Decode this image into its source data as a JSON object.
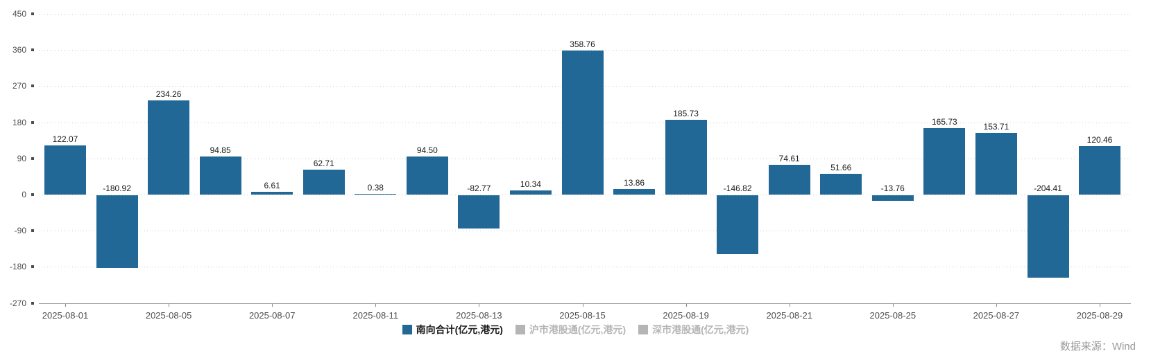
{
  "chart_data": {
    "type": "bar",
    "title": "",
    "grid": "dotted-horizontal",
    "legend_position": "bottom",
    "ylim": [
      -270,
      450
    ],
    "y_ticks": [
      450,
      360,
      270,
      180,
      90,
      0,
      -90,
      -180,
      -270
    ],
    "x_tick_labels": [
      "2025-08-01",
      "2025-08-05",
      "2025-08-07",
      "2025-08-11",
      "2025-08-13",
      "2025-08-15",
      "2025-08-19",
      "2025-08-21",
      "2025-08-25",
      "2025-08-27",
      "2025-08-29"
    ],
    "x_label_every_n_bars": 2,
    "value_label_decimals": 2,
    "series": [
      {
        "name": "南向合计(亿元,港元)",
        "color": "#226896",
        "values": [
          122.07,
          -180.92,
          234.26,
          94.85,
          6.61,
          62.71,
          0.38,
          94.5,
          -82.77,
          10.34,
          358.76,
          13.86,
          185.73,
          -146.82,
          74.61,
          51.66,
          -13.76,
          165.73,
          153.71,
          -204.41,
          120.46
        ]
      }
    ]
  },
  "legend": {
    "items": [
      {
        "label": "南向合计(亿元,港元)",
        "marker_color": "#226896",
        "text_color": "#1a1a1a",
        "active": true
      },
      {
        "label": "沪市港股通(亿元,港元)",
        "marker_color": "#b5b5b5",
        "text_color": "#b5b5b5",
        "active": false
      },
      {
        "label": "深市港股通(亿元,港元)",
        "marker_color": "#b5b5b5",
        "text_color": "#b5b5b5",
        "active": false
      }
    ]
  },
  "footer": {
    "source": "数据来源：Wind"
  },
  "colors": {
    "grid": "#c9c9c9",
    "axis": "#999999",
    "tick_mark": "#8c8c8c",
    "axis_label": "#4d4d4d",
    "value_label": "#1a1a1a",
    "bar": "#226896"
  }
}
